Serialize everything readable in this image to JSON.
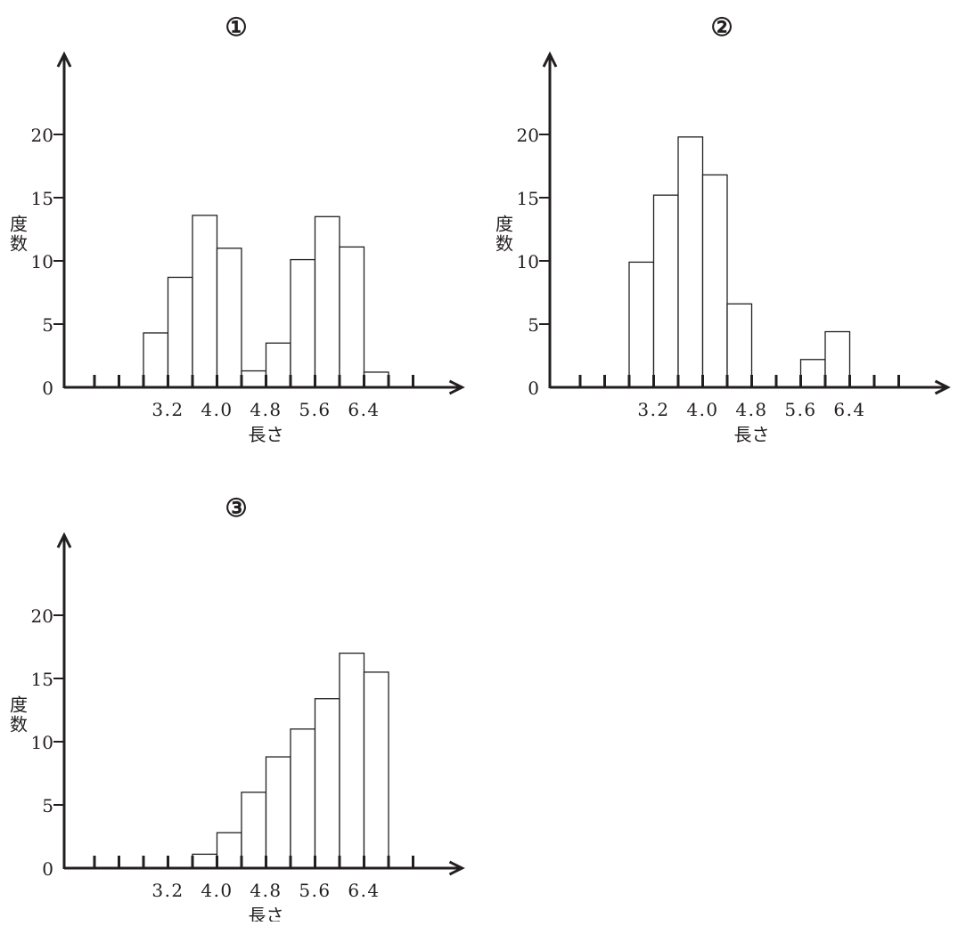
{
  "chart_data": [
    {
      "type": "bar",
      "title": "①",
      "xlabel": "長さ",
      "ylabel": "度数",
      "x_tick_labels": [
        "3.2",
        "4.0",
        "4.8",
        "5.6",
        "6.4"
      ],
      "y_ticks": [
        0,
        5,
        10,
        15,
        20
      ],
      "ylim": [
        0,
        25
      ],
      "bin_width": 0.4,
      "bins": [
        {
          "start": 2.8,
          "end": 3.2,
          "value": 4.3
        },
        {
          "start": 3.2,
          "end": 3.6,
          "value": 8.7
        },
        {
          "start": 3.6,
          "end": 4.0,
          "value": 13.6
        },
        {
          "start": 4.0,
          "end": 4.4,
          "value": 11.0
        },
        {
          "start": 4.4,
          "end": 4.8,
          "value": 1.3
        },
        {
          "start": 4.8,
          "end": 5.2,
          "value": 3.5
        },
        {
          "start": 5.2,
          "end": 5.6,
          "value": 10.1
        },
        {
          "start": 5.6,
          "end": 6.0,
          "value": 13.5
        },
        {
          "start": 6.0,
          "end": 6.4,
          "value": 11.1
        },
        {
          "start": 6.4,
          "end": 6.8,
          "value": 1.2
        }
      ]
    },
    {
      "type": "bar",
      "title": "②",
      "xlabel": "長さ",
      "ylabel": "度数",
      "x_tick_labels": [
        "3.2",
        "4.0",
        "4.8",
        "5.6",
        "6.4"
      ],
      "y_ticks": [
        0,
        5,
        10,
        15,
        20
      ],
      "ylim": [
        0,
        25
      ],
      "bin_width": 0.4,
      "bins": [
        {
          "start": 2.8,
          "end": 3.2,
          "value": 9.9
        },
        {
          "start": 3.2,
          "end": 3.6,
          "value": 15.2
        },
        {
          "start": 3.6,
          "end": 4.0,
          "value": 19.8
        },
        {
          "start": 4.0,
          "end": 4.4,
          "value": 16.8
        },
        {
          "start": 4.4,
          "end": 4.8,
          "value": 6.6
        },
        {
          "start": 5.6,
          "end": 6.0,
          "value": 2.2
        },
        {
          "start": 6.0,
          "end": 6.4,
          "value": 4.4
        }
      ]
    },
    {
      "type": "bar",
      "title": "③",
      "xlabel": "長さ",
      "ylabel": "度数",
      "x_tick_labels": [
        "3.2",
        "4.0",
        "4.8",
        "5.6",
        "6.4"
      ],
      "y_ticks": [
        0,
        5,
        10,
        15,
        20
      ],
      "ylim": [
        0,
        25
      ],
      "bin_width": 0.4,
      "bins": [
        {
          "start": 3.6,
          "end": 4.0,
          "value": 1.1
        },
        {
          "start": 4.0,
          "end": 4.4,
          "value": 2.8
        },
        {
          "start": 4.4,
          "end": 4.8,
          "value": 6.0
        },
        {
          "start": 4.8,
          "end": 5.2,
          "value": 8.8
        },
        {
          "start": 5.2,
          "end": 5.6,
          "value": 11.0
        },
        {
          "start": 5.6,
          "end": 6.0,
          "value": 13.4
        },
        {
          "start": 6.0,
          "end": 6.4,
          "value": 17.0
        },
        {
          "start": 6.4,
          "end": 6.8,
          "value": 15.5
        }
      ]
    }
  ]
}
